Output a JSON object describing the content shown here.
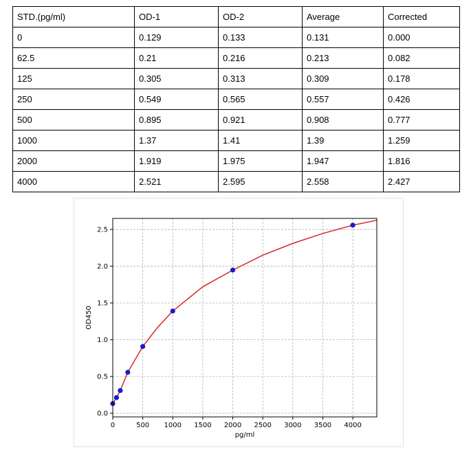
{
  "table": {
    "headers": [
      "STD.(pg/ml)",
      "OD-1",
      "OD-2",
      "Average",
      "Corrected"
    ],
    "rows": [
      [
        "0",
        "0.129",
        "0.133",
        "0.131",
        "0.000"
      ],
      [
        "62.5",
        "0.21",
        "0.216",
        "0.213",
        "0.082"
      ],
      [
        "125",
        "0.305",
        "0.313",
        "0.309",
        "0.178"
      ],
      [
        "250",
        "0.549",
        "0.565",
        "0.557",
        "0.426"
      ],
      [
        "500",
        "0.895",
        "0.921",
        "0.908",
        "0.777"
      ],
      [
        "1000",
        "1.37",
        "1.41",
        "1.39",
        "1.259"
      ],
      [
        "2000",
        "1.919",
        "1.975",
        "1.947",
        "1.816"
      ],
      [
        "4000",
        "2.521",
        "2.595",
        "2.558",
        "2.427"
      ]
    ]
  },
  "chart_data": {
    "type": "scatter",
    "xlabel": "pg/ml",
    "ylabel": "OD450",
    "xlim": [
      0,
      4400
    ],
    "ylim": [
      -0.05,
      2.65
    ],
    "xticks": [
      0,
      500,
      1000,
      1500,
      2000,
      2500,
      3000,
      3500,
      4000
    ],
    "xtick_labels": [
      "0",
      "500",
      "1000",
      "1500",
      "2000",
      "2500",
      "3000",
      "3500",
      "4000"
    ],
    "yticks": [
      0.0,
      0.5,
      1.0,
      1.5,
      2.0,
      2.5
    ],
    "ytick_labels": [
      "0.0",
      "0.5",
      "1.0",
      "1.5",
      "2.0",
      "2.5"
    ],
    "grid": true,
    "points": {
      "x": [
        0,
        62.5,
        125,
        250,
        500,
        1000,
        2000,
        4000
      ],
      "y": [
        0.131,
        0.213,
        0.309,
        0.557,
        0.908,
        1.39,
        1.947,
        2.558
      ],
      "color": "#1a1acc"
    },
    "fit_curve": {
      "color": "#d62728",
      "x": [
        0,
        62.5,
        125,
        250,
        500,
        750,
        1000,
        1500,
        2000,
        2500,
        3000,
        3500,
        4000,
        4400
      ],
      "y": [
        0.131,
        0.213,
        0.309,
        0.557,
        0.908,
        1.17,
        1.39,
        1.72,
        1.947,
        2.15,
        2.31,
        2.445,
        2.558,
        2.625
      ]
    }
  }
}
